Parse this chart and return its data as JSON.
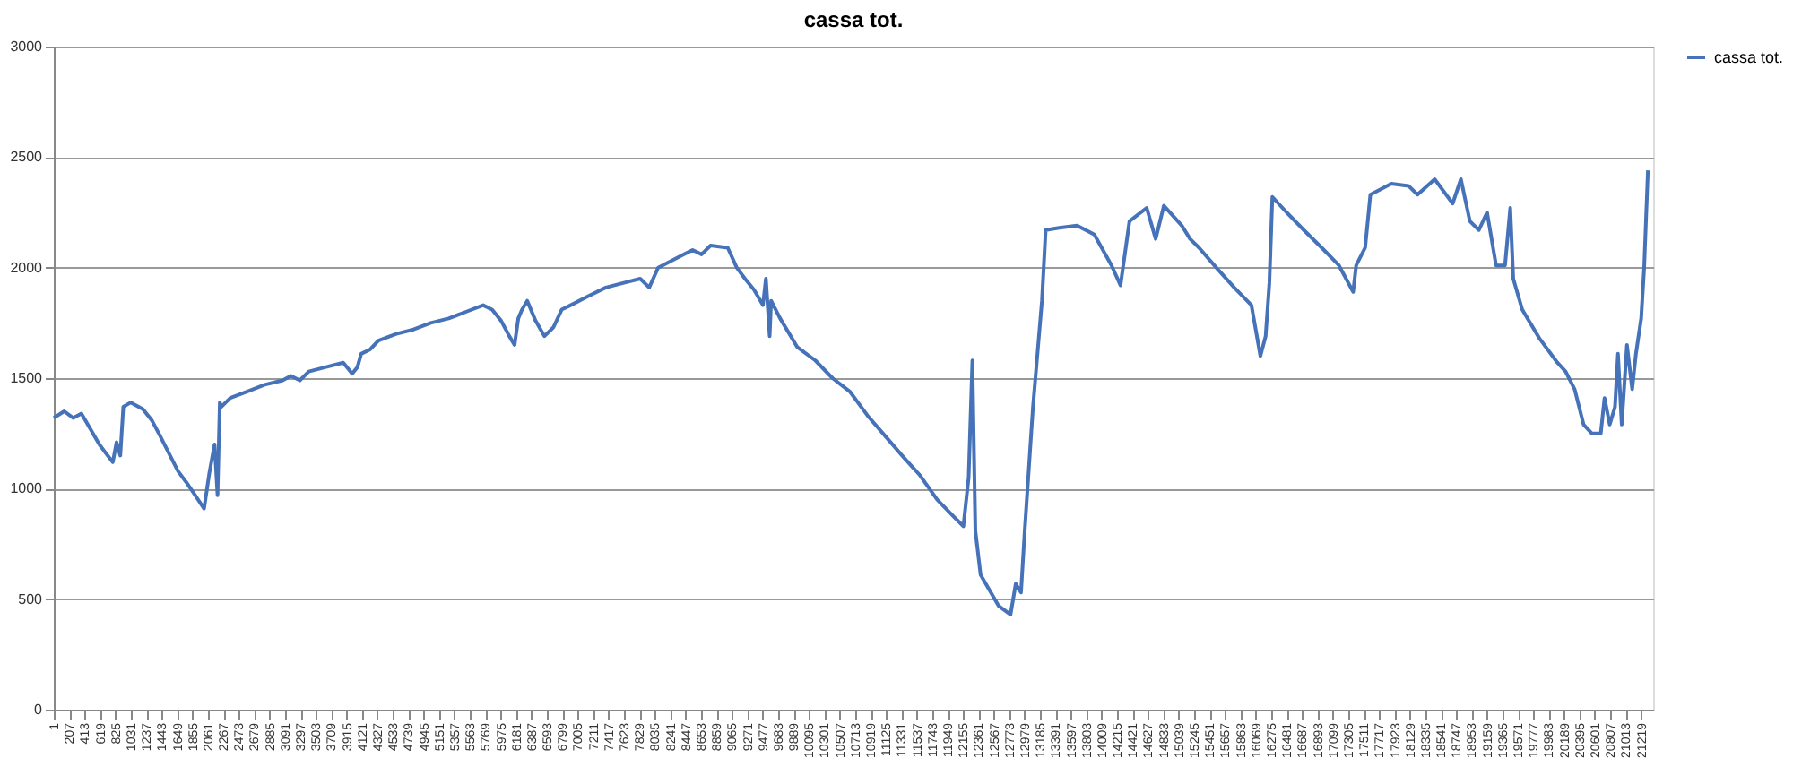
{
  "chart_data": {
    "type": "line",
    "title": "cassa tot.",
    "xlim": [
      1,
      21380
    ],
    "ylim": [
      0,
      3000
    ],
    "yticks": [
      0,
      500,
      1000,
      1500,
      2000,
      2500,
      3000
    ],
    "xticks": [
      1,
      207,
      413,
      619,
      825,
      1031,
      1237,
      1443,
      1649,
      1855,
      2061,
      2267,
      2473,
      2679,
      2885,
      3091,
      3297,
      3503,
      3709,
      3915,
      4121,
      4327,
      4533,
      4739,
      4945,
      5151,
      5357,
      5563,
      5769,
      5975,
      6181,
      6387,
      6593,
      6799,
      7005,
      7211,
      7417,
      7623,
      7829,
      8035,
      8241,
      8447,
      8653,
      8859,
      9065,
      9271,
      9477,
      9683,
      9889,
      10095,
      10301,
      10507,
      10713,
      10919,
      11125,
      11331,
      11537,
      11743,
      11949,
      12155,
      12361,
      12567,
      12773,
      12979,
      13185,
      13391,
      13597,
      13803,
      14009,
      14215,
      14421,
      14627,
      14833,
      15039,
      15245,
      15451,
      15657,
      15863,
      16069,
      16275,
      16481,
      16687,
      16893,
      17099,
      17305,
      17511,
      17717,
      17923,
      18129,
      18335,
      18541,
      18747,
      18953,
      19159,
      19365,
      19571,
      19777,
      19983,
      20189,
      20395,
      20601,
      20807,
      21013,
      21219
    ],
    "grid": "y",
    "legend": "right",
    "series": [
      {
        "name": "cassa tot.",
        "color": "#4572b8",
        "x": [
          1,
          140,
          260,
          370,
          490,
          610,
          720,
          790,
          840,
          890,
          930,
          1030,
          1190,
          1310,
          1420,
          1540,
          1660,
          1770,
          1890,
          2010,
          2080,
          2150,
          2190,
          2220,
          2240,
          2360,
          2590,
          2820,
          3060,
          3170,
          3290,
          3410,
          3640,
          3870,
          3990,
          4060,
          4110,
          4230,
          4340,
          4580,
          4810,
          5040,
          5280,
          5510,
          5740,
          5860,
          5980,
          6090,
          6160,
          6210,
          6260,
          6330,
          6440,
          6560,
          6680,
          6790,
          6910,
          7140,
          7380,
          7610,
          7840,
          7960,
          8080,
          8310,
          8540,
          8660,
          8780,
          9010,
          9130,
          9240,
          9360,
          9480,
          9520,
          9570,
          9590,
          9710,
          9940,
          10180,
          10410,
          10640,
          10880,
          11110,
          11340,
          11580,
          11810,
          12040,
          12160,
          12230,
          12280,
          12320,
          12390,
          12630,
          12790,
          12860,
          12930,
          12980,
          13090,
          13210,
          13260,
          13440,
          13680,
          13910,
          14140,
          14260,
          14380,
          14610,
          14730,
          14840,
          15080,
          15190,
          15310,
          15540,
          15780,
          16010,
          16130,
          16200,
          16250,
          16290,
          16480,
          16710,
          16950,
          17180,
          17370,
          17410,
          17530,
          17600,
          17880,
          18110,
          18230,
          18460,
          18700,
          18810,
          18930,
          19050,
          19160,
          19280,
          19400,
          19470,
          19510,
          19630,
          19860,
          20100,
          20210,
          20330,
          20450,
          20560,
          20680,
          20730,
          20800,
          20870,
          20910,
          20960,
          21030,
          21100,
          21150,
          21220,
          21260,
          21310
        ],
        "values": [
          1320,
          1350,
          1320,
          1340,
          1270,
          1200,
          1150,
          1120,
          1210,
          1150,
          1370,
          1390,
          1360,
          1310,
          1240,
          1160,
          1080,
          1030,
          970,
          910,
          1070,
          1200,
          970,
          1390,
          1370,
          1410,
          1440,
          1470,
          1490,
          1510,
          1490,
          1530,
          1550,
          1570,
          1520,
          1550,
          1610,
          1630,
          1670,
          1700,
          1720,
          1750,
          1770,
          1800,
          1830,
          1810,
          1760,
          1690,
          1650,
          1770,
          1810,
          1850,
          1760,
          1690,
          1730,
          1810,
          1830,
          1870,
          1910,
          1930,
          1950,
          1910,
          2000,
          2040,
          2080,
          2060,
          2100,
          2090,
          2000,
          1950,
          1900,
          1830,
          1950,
          1690,
          1850,
          1770,
          1640,
          1580,
          1500,
          1440,
          1330,
          1240,
          1150,
          1060,
          950,
          870,
          830,
          1050,
          1580,
          810,
          610,
          470,
          430,
          570,
          530,
          810,
          1370,
          1850,
          2170,
          2180,
          2190,
          2150,
          2010,
          1920,
          2210,
          2270,
          2130,
          2280,
          2190,
          2130,
          2090,
          2000,
          1910,
          1830,
          1600,
          1690,
          1930,
          2320,
          2250,
          2170,
          2090,
          2010,
          1890,
          2010,
          2090,
          2330,
          2380,
          2370,
          2330,
          2400,
          2290,
          2400,
          2210,
          2170,
          2250,
          2010,
          2010,
          2270,
          1950,
          1810,
          1680,
          1570,
          1530,
          1450,
          1290,
          1250,
          1250,
          1410,
          1290,
          1370,
          1610,
          1290,
          1650,
          1450,
          1610,
          1770,
          2000,
          2440
        ]
      }
    ]
  }
}
